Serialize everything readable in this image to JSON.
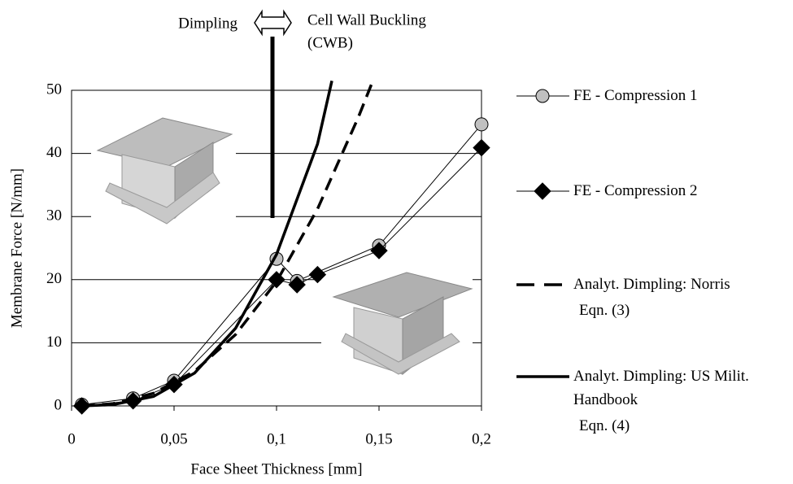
{
  "chart_data": {
    "type": "line",
    "xlabel": "Face Sheet Thickness [mm]",
    "ylabel": "Membrane Force [N/mm]",
    "xlim": [
      0,
      0.2
    ],
    "ylim": [
      0,
      50
    ],
    "xticks": [
      0,
      {
        "value": 0.05,
        "label": "0,05"
      },
      {
        "value": 0.1,
        "label": "0,1"
      },
      {
        "value": 0.15,
        "label": "0,15"
      },
      {
        "value": 0.2,
        "label": "0,2"
      }
    ],
    "yticks": [
      0,
      10,
      20,
      30,
      40,
      50
    ],
    "grid": true,
    "annotations": [
      "Dimpling",
      "Cell Wall Buckling",
      "(CWB)"
    ],
    "series": [
      {
        "name": "FE - Compression 1",
        "color": "#000000",
        "marker": "circle",
        "marker_color": "#c0c0c0",
        "line_style": "thin",
        "x": [
          0.005,
          0.03,
          0.05,
          0.1,
          0.11,
          0.15,
          0.2
        ],
        "values": [
          0.2,
          1.2,
          4,
          23.3,
          19.8,
          25.4,
          44.6
        ]
      },
      {
        "name": "FE - Compression 2",
        "color": "#000000",
        "marker": "diamond",
        "marker_color": "#000000",
        "line_style": "thin",
        "x": [
          0.005,
          0.03,
          0.05,
          0.1,
          0.11,
          0.12,
          0.15,
          0.2
        ],
        "values": [
          0,
          0.8,
          3.4,
          20,
          19.2,
          20.8,
          24.6,
          40.9
        ]
      },
      {
        "name": "Analyt. Dimpling: Norris",
        "equation": "Eqn. (3)",
        "color": "#000000",
        "line_style": "dashed",
        "x": [
          0.005,
          0.02,
          0.04,
          0.06,
          0.08,
          0.1,
          0.12,
          0.14,
          0.147
        ],
        "values": [
          0.01,
          0.35,
          2,
          5.5,
          11.3,
          19.7,
          31.2,
          45.8,
          51.5
        ]
      },
      {
        "name": "Analyt. Dimpling: US Milit. Handbook",
        "equation": "Eqn. (4)",
        "color": "#000000",
        "line_style": "thick",
        "x": [
          0.005,
          0.02,
          0.04,
          0.06,
          0.08,
          0.1,
          0.12,
          0.127
        ],
        "values": [
          0,
          0.19,
          1.5,
          5.2,
          12.3,
          24,
          41.5,
          51.5
        ]
      }
    ]
  }
}
